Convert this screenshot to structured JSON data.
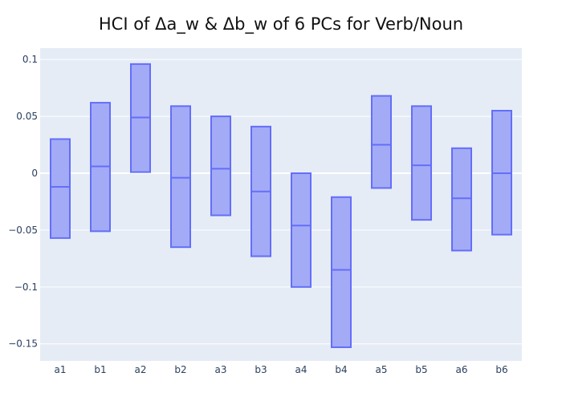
{
  "chart_data": {
    "type": "box",
    "title": "HCI of Δa_w & Δb_w of 6 PCs for Verb/Noun",
    "xlabel": "",
    "ylabel": "",
    "ylim": [
      -0.165,
      0.11
    ],
    "yticks": [
      0.1,
      0.05,
      0,
      -0.05,
      -0.1,
      -0.15
    ],
    "ytick_labels": [
      "0.1",
      "0.05",
      "0",
      "−0.05",
      "−0.1",
      "−0.15"
    ],
    "grid": true,
    "legend": "none",
    "categories": [
      "a1",
      "b1",
      "a2",
      "b2",
      "a3",
      "b3",
      "a4",
      "b4",
      "a5",
      "b5",
      "a6",
      "b6"
    ],
    "boxes": [
      {
        "label": "a1",
        "low": -0.057,
        "mid": -0.012,
        "high": 0.03
      },
      {
        "label": "b1",
        "low": -0.051,
        "mid": 0.006,
        "high": 0.062
      },
      {
        "label": "a2",
        "low": 0.001,
        "mid": 0.049,
        "high": 0.096
      },
      {
        "label": "b2",
        "low": -0.065,
        "mid": -0.004,
        "high": 0.059
      },
      {
        "label": "a3",
        "low": -0.037,
        "mid": 0.004,
        "high": 0.05
      },
      {
        "label": "b3",
        "low": -0.073,
        "mid": -0.016,
        "high": 0.041
      },
      {
        "label": "a4",
        "low": -0.1,
        "mid": -0.046,
        "high": 0.0
      },
      {
        "label": "b4",
        "low": -0.153,
        "mid": -0.085,
        "high": -0.021
      },
      {
        "label": "a5",
        "low": -0.013,
        "mid": 0.025,
        "high": 0.068
      },
      {
        "label": "b5",
        "low": -0.041,
        "mid": 0.007,
        "high": 0.059
      },
      {
        "label": "a6",
        "low": -0.068,
        "mid": -0.022,
        "high": 0.022
      },
      {
        "label": "b6",
        "low": -0.054,
        "mid": 0.0,
        "high": 0.055
      }
    ],
    "colors": {
      "plot_bg": "#e5ecf6",
      "grid": "#ffffff",
      "box_fill": "#a4abf6",
      "box_stroke": "#636efa",
      "tick_text": "#2a3f5f"
    }
  }
}
